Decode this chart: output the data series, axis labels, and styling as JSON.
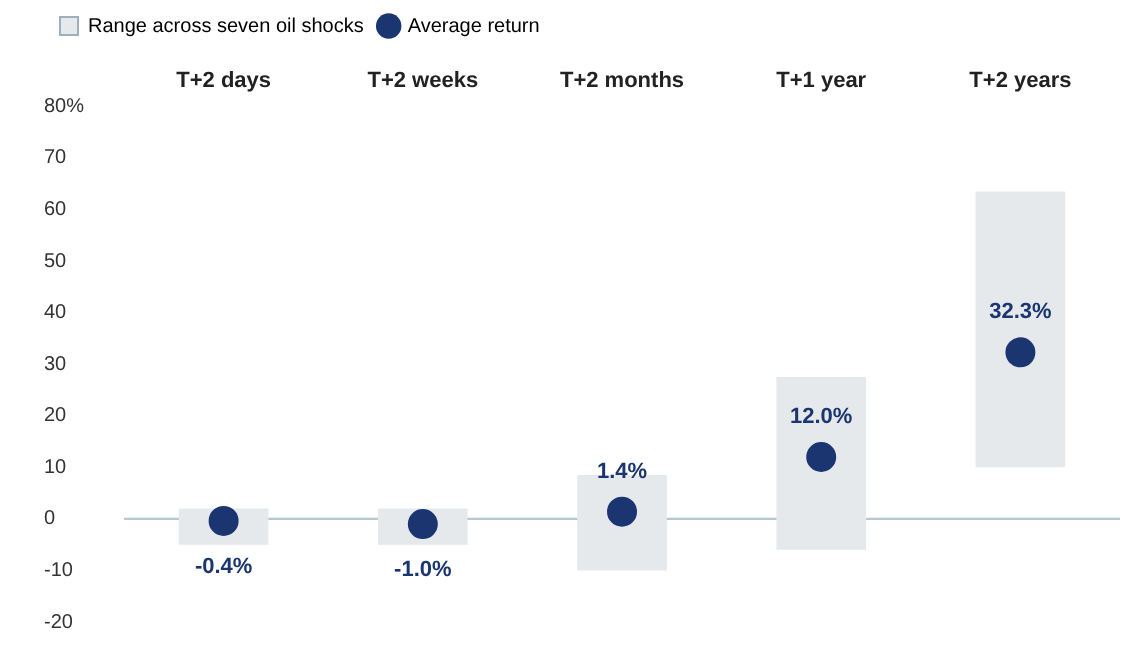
{
  "chart_data": {
    "type": "bar",
    "categories": [
      "T+2 days",
      "T+2 weeks",
      "T+2 months",
      "T+1 year",
      "T+2 years"
    ],
    "series": [
      {
        "name": "Range across seven oil shocks",
        "color": "#e5e9ec",
        "base": [
          -5,
          -5,
          -10,
          -6,
          10
        ],
        "values": [
          7,
          7,
          18.5,
          33.5,
          53.5
        ]
      },
      {
        "name": "Average return",
        "type": "scatter",
        "color": "#1a3570",
        "x": [
          "T+2 days",
          "T+2 weeks",
          "T+2 months",
          "T+1 year",
          "T+2 years"
        ],
        "values": [
          -0.4,
          -1.0,
          1.4,
          12.0,
          32.3
        ],
        "value_labels": [
          "-0.4%",
          "-1.0%",
          "1.4%",
          "12.0%",
          "32.3%"
        ]
      }
    ],
    "ylim": [
      -20,
      80
    ],
    "yticks": [
      {
        "value": 80,
        "label": "80%"
      },
      70,
      60,
      50,
      40,
      30,
      20,
      10,
      0,
      -10,
      -20
    ],
    "ref_lines": [
      {
        "axis": "y",
        "value": 0,
        "color": "#b9c8cc"
      }
    ],
    "grid": false,
    "legend": "top left",
    "marker": "circle"
  }
}
